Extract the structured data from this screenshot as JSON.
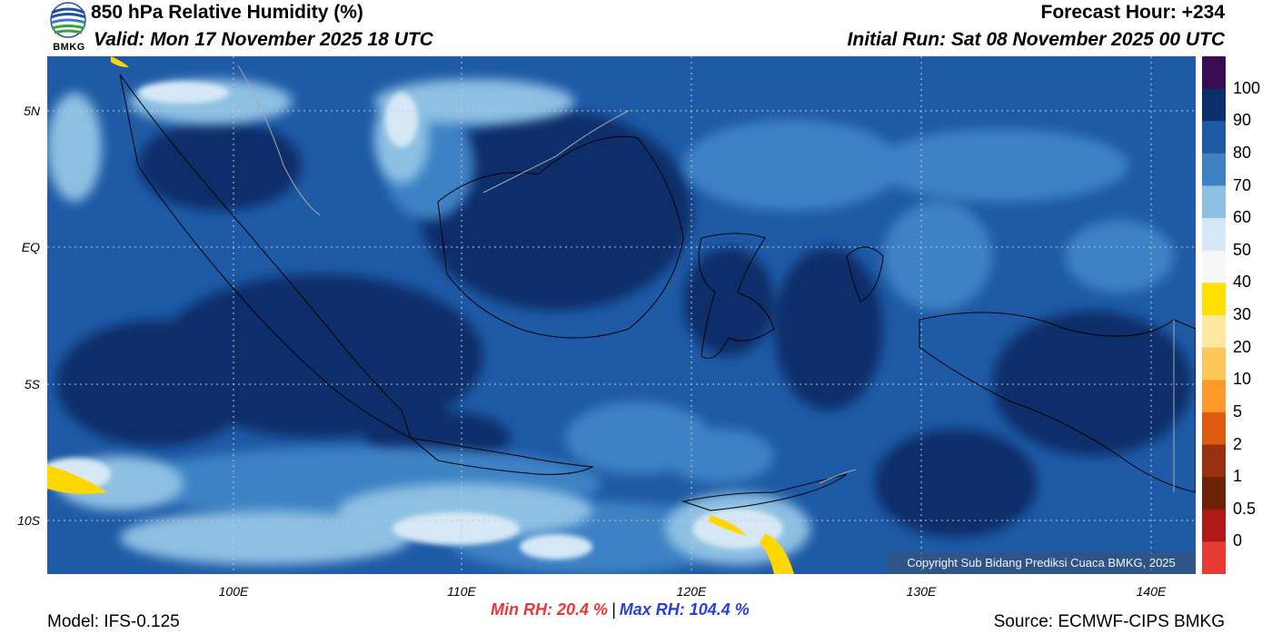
{
  "header": {
    "title": "850 hPa Relative Humidity (%)",
    "valid": "Valid: Mon 17 November 2025 18 UTC",
    "forecast_hour": "Forecast Hour: +234",
    "initial_run": "Initial Run: Sat 08 November 2025 00 UTC",
    "logo_text": "BMKG"
  },
  "map": {
    "lat_labels": [
      "5N",
      "EQ",
      "5S",
      "10S"
    ],
    "lon_labels": [
      "100E",
      "110E",
      "120E",
      "130E",
      "140E"
    ],
    "copyright": "Copyright Sub Bidang Prediksi Cuaca BMKG, 2025",
    "colors": {
      "very_moist": "#0a2f6b",
      "moist": "#1f5aa6",
      "mid": "#3e82c4",
      "light": "#8ec0e3",
      "pale": "#d6e8f5",
      "dry_yellow": "#ffd700",
      "land_border": "#000000",
      "state_border": "#a8a8a8"
    }
  },
  "colorbar": {
    "labels": [
      "100",
      "90",
      "80",
      "70",
      "60",
      "50",
      "40",
      "30",
      "20",
      "10",
      "5",
      "2",
      "1",
      "0.5",
      "0"
    ],
    "colors": [
      "#3a0a52",
      "#0a2f6b",
      "#1f5aa6",
      "#3e82c4",
      "#8ec0e3",
      "#d6e8f5",
      "#f6f6f6",
      "#ffe000",
      "#ffe7a0",
      "#ffc65a",
      "#ff9a2a",
      "#dd5a10",
      "#993010",
      "#6b2408",
      "#b01818",
      "#e63a32"
    ]
  },
  "footer": {
    "min_rh": "Min RH:  20.4 %",
    "separator": "|",
    "max_rh": "Max RH: 104.4 %",
    "model": "Model: IFS-0.125",
    "source": "Source: ECMWF-CIPS BMKG"
  }
}
